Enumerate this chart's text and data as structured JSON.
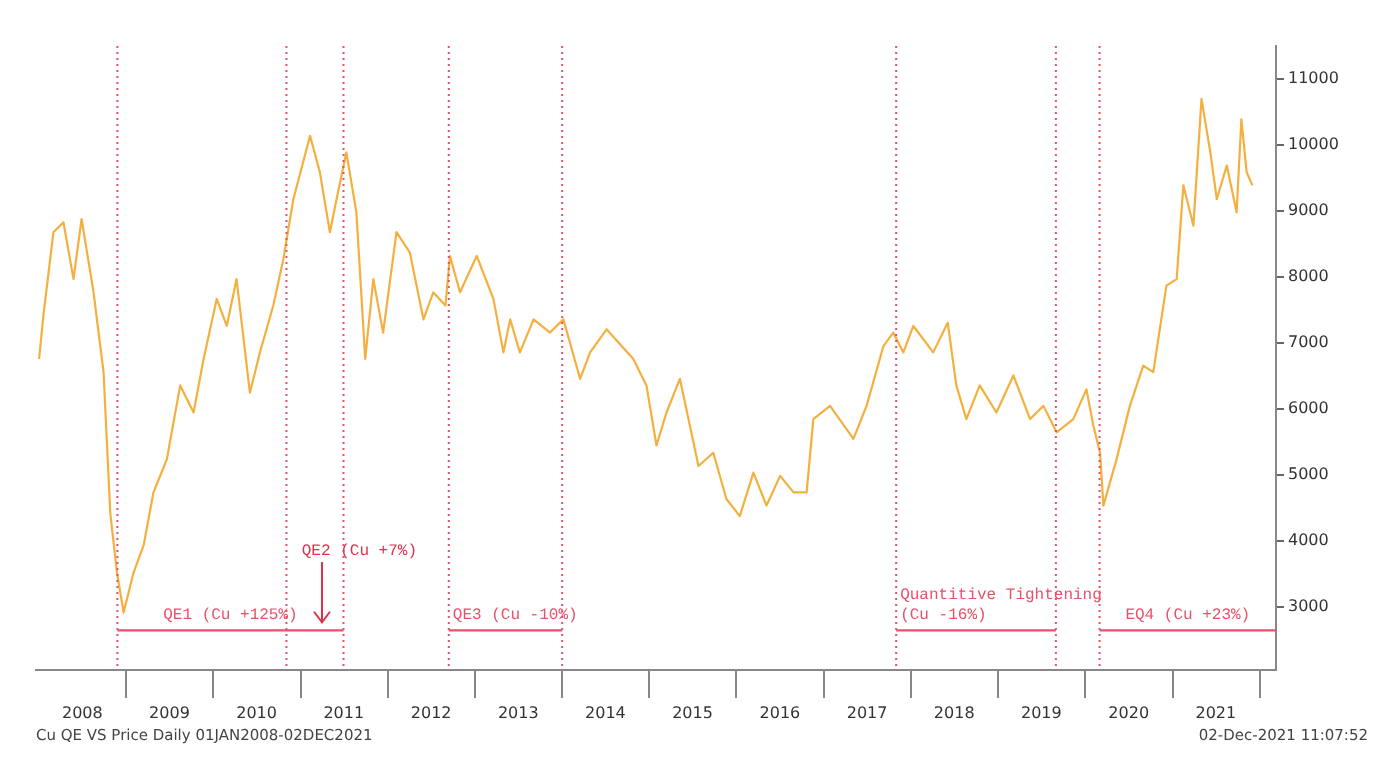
{
  "chart_data": {
    "type": "line",
    "annotations": [
      {
        "text": "QE2 (Cu +7%)",
        "x": "2011-03-31",
        "y": 2650
      },
      "Cu QE VS Price  Daily 01JAN2008-02DEC2021",
      "02-Dec-2021 11:07:52"
    ],
    "marker": "none",
    "xlim": [
      "2007-12-20",
      "2022-03-10"
    ],
    "xticks": [
      {
        "value": "2008-07-01",
        "label": "2008"
      },
      {
        "value": "2009-01-01",
        "label": null
      },
      {
        "value": "2009-07-01",
        "label": "2009"
      },
      {
        "value": "2010-01-01",
        "label": null
      },
      {
        "value": "2010-07-01",
        "label": "2010"
      },
      {
        "value": "2011-01-01",
        "label": null
      },
      {
        "value": "2011-07-01",
        "label": "2011"
      },
      {
        "value": "2012-01-01",
        "label": null
      },
      {
        "value": "2012-07-01",
        "label": "2012"
      },
      {
        "value": "2013-01-01",
        "label": null
      },
      {
        "value": "2013-07-01",
        "label": "2013"
      },
      {
        "value": "2014-01-01",
        "label": null
      },
      {
        "value": "2014-07-01",
        "label": "2014"
      },
      {
        "value": "2015-01-01",
        "label": null
      },
      {
        "value": "2015-07-01",
        "label": "2015"
      },
      {
        "value": "2016-01-01",
        "label": null
      },
      {
        "value": "2016-07-01",
        "label": "2016"
      },
      {
        "value": "2017-01-01",
        "label": null
      },
      {
        "value": "2017-07-01",
        "label": "2017"
      },
      {
        "value": "2018-01-01",
        "label": null
      },
      {
        "value": "2018-07-01",
        "label": "2018"
      },
      {
        "value": "2019-01-01",
        "label": null
      },
      {
        "value": "2019-07-01",
        "label": "2019"
      },
      {
        "value": "2020-01-01",
        "label": null
      },
      {
        "value": "2020-07-01",
        "label": "2020"
      },
      {
        "value": "2021-01-01",
        "label": null
      },
      {
        "value": "2021-07-01",
        "label": "2021"
      },
      {
        "value": "2022-01-01",
        "label": null
      }
    ],
    "ylim": [
      2050,
      11500
    ],
    "yticks": [
      3000,
      4000,
      5000,
      6000,
      7000,
      8000,
      9000,
      10000,
      11000
    ],
    "ref_lines": [
      {
        "axis": "x",
        "value": "2008-11-25",
        "color": "#e8506a",
        "line_style": "dotted"
      },
      {
        "axis": "x",
        "value": "2010-11-03",
        "color": "#e8506a",
        "line_style": "dotted"
      },
      {
        "axis": "x",
        "value": "2011-06-30",
        "color": "#e8506a",
        "line_style": "dotted"
      },
      {
        "axis": "x",
        "value": "2012-09-13",
        "color": "#e8506a",
        "line_style": "dotted"
      },
      {
        "axis": "x",
        "value": "2014-01-01",
        "color": "#e8506a",
        "line_style": "dotted"
      },
      {
        "axis": "x",
        "value": "2017-10-31",
        "color": "#e8506a",
        "line_style": "dotted"
      },
      {
        "axis": "x",
        "value": "2019-08-31",
        "color": "#e8506a",
        "line_style": "dotted"
      },
      {
        "axis": "x",
        "value": "2020-03-01",
        "color": "#e8506a",
        "line_style": "dotted"
      }
    ],
    "series": [
      {
        "color": "#f4b03e",
        "x": [
          "2008-01-02",
          "2008-01-20",
          "2008-03-02",
          "2008-04-13",
          "2008-05-25",
          "2008-06-28",
          "2008-08-17",
          "2008-09-28",
          "2008-10-26",
          "2008-11-23",
          "2008-12-21",
          "2009-02-01",
          "2009-03-15",
          "2009-04-25",
          "2009-06-20",
          "2009-08-15",
          "2009-10-10",
          "2009-11-21",
          "2010-01-15",
          "2010-02-26",
          "2010-04-08",
          "2010-06-03",
          "2010-07-15",
          "2010-09-09",
          "2010-10-21",
          "2010-12-02",
          "2011-02-10",
          "2011-03-23",
          "2011-05-04",
          "2011-06-01",
          "2011-07-12",
          "2011-08-23",
          "2011-09-29",
          "2011-11-02",
          "2011-12-13",
          "2012-02-07",
          "2012-04-03",
          "2012-05-30",
          "2012-07-10",
          "2012-08-30",
          "2012-09-18",
          "2012-10-30",
          "2013-01-08",
          "2013-03-19",
          "2013-04-30",
          "2013-05-28",
          "2013-07-08",
          "2013-09-03",
          "2013-11-11",
          "2014-01-06",
          "2014-03-17",
          "2014-04-28",
          "2014-07-06",
          "2014-10-26",
          "2014-12-20",
          "2015-01-31",
          "2015-03-14",
          "2015-05-09",
          "2015-07-26",
          "2015-09-26",
          "2015-11-20",
          "2016-01-15",
          "2016-03-12",
          "2016-05-06",
          "2016-07-02",
          "2016-08-27",
          "2016-10-21",
          "2016-11-18",
          "2017-01-27",
          "2017-05-05",
          "2017-06-29",
          "2017-09-08",
          "2017-10-19",
          "2017-11-30",
          "2018-01-11",
          "2018-04-04",
          "2018-06-04",
          "2018-07-10",
          "2018-08-21",
          "2018-10-16",
          "2018-12-25",
          "2019-03-06",
          "2019-05-15",
          "2019-07-10",
          "2019-09-03",
          "2019-11-12",
          "2020-01-06",
          "2020-02-04",
          "2020-03-03",
          "2020-03-17",
          "2020-05-11",
          "2020-07-06",
          "2020-08-31",
          "2020-10-12",
          "2020-12-06",
          "2021-01-18",
          "2021-02-15",
          "2021-03-29",
          "2021-05-02",
          "2021-06-08",
          "2021-07-05",
          "2021-08-16",
          "2021-09-26",
          "2021-10-16",
          "2021-11-07",
          "2021-12-01"
        ],
        "values": [
          6760,
          7420,
          8680,
          8830,
          7970,
          8880,
          7770,
          6560,
          4430,
          3530,
          2920,
          3530,
          3940,
          4740,
          5240,
          6360,
          5950,
          6760,
          7670,
          7260,
          7970,
          6250,
          6860,
          7570,
          8270,
          9180,
          10140,
          9590,
          8680,
          9180,
          9890,
          8980,
          6760,
          7970,
          7160,
          8680,
          8370,
          7360,
          7770,
          7570,
          8320,
          7770,
          8320,
          7670,
          6860,
          7360,
          6860,
          7360,
          7160,
          7360,
          6460,
          6860,
          7210,
          6760,
          6360,
          5450,
          5950,
          6460,
          5140,
          5340,
          4640,
          4380,
          5040,
          4540,
          4990,
          4740,
          4740,
          5850,
          6050,
          5550,
          6050,
          6960,
          7160,
          6860,
          7260,
          6860,
          7310,
          6360,
          5850,
          6360,
          5950,
          6510,
          5850,
          6050,
          5650,
          5850,
          6300,
          5750,
          5340,
          4540,
          5240,
          6050,
          6660,
          6560,
          7870,
          7970,
          9390,
          8780,
          10700,
          9890,
          9180,
          9690,
          8980,
          10390,
          9590,
          9390
        ]
      },
      {
        "name": "QE1 (Cu +125%)",
        "color": "#e8506a",
        "x": [
          "2008-11-25",
          "2011-06-30"
        ],
        "values": [
          2650,
          2650
        ]
      },
      {
        "name": "QE3 (Cu -10%)",
        "color": "#e8506a",
        "x": [
          "2012-09-13",
          "2014-01-01"
        ],
        "values": [
          2650,
          2650
        ]
      },
      {
        "name": "Quantitive Tightening (Cu -16%)",
        "color": "#e8506a",
        "x": [
          "2017-10-31",
          "2019-08-31"
        ],
        "values": [
          2650,
          2650
        ]
      },
      {
        "name": "EQ4 (Cu +23%)",
        "color": "#e8506a",
        "x": [
          "2020-03-01",
          "2022-03-10"
        ],
        "values": [
          2650,
          2650
        ]
      }
    ]
  }
}
